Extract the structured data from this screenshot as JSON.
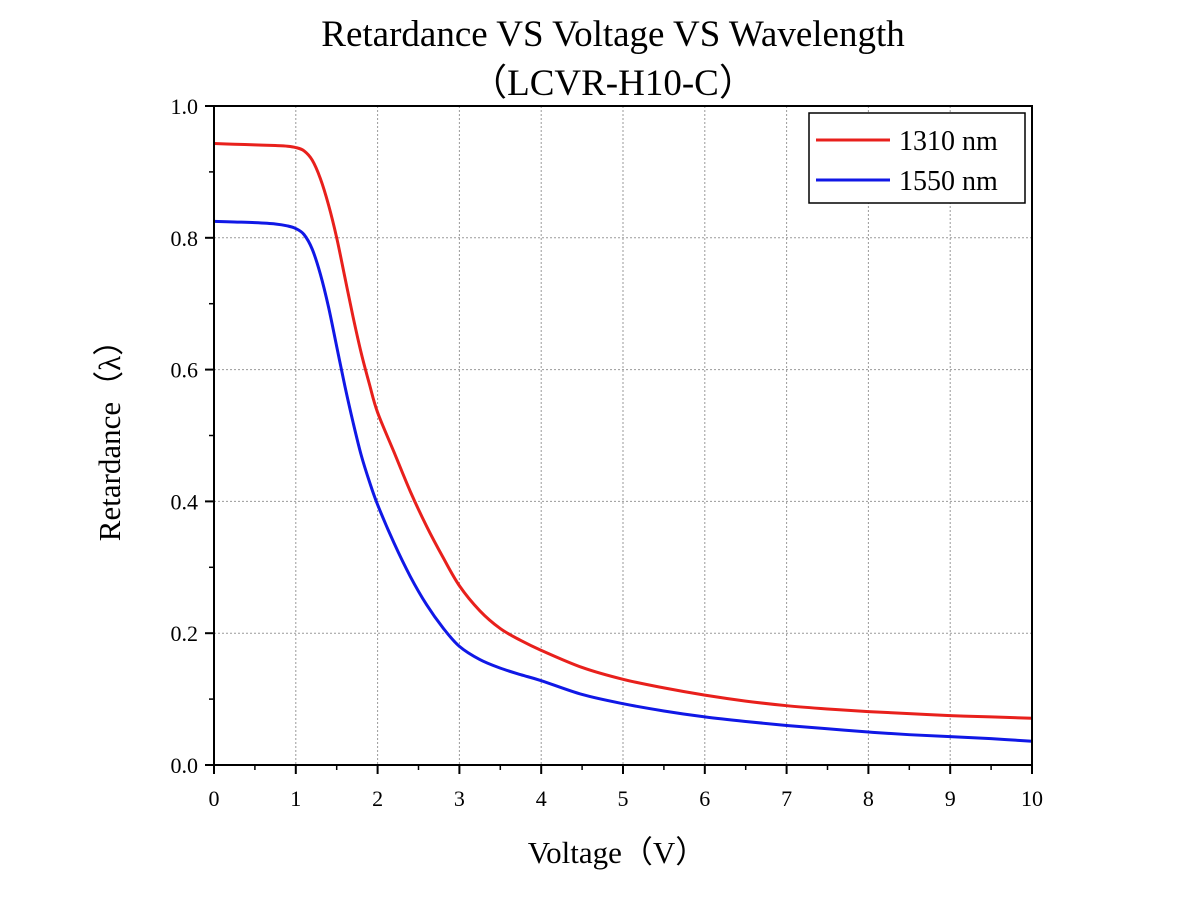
{
  "chart_data": {
    "type": "line",
    "title": "Retardance VS Voltage VS Wavelength",
    "subtitle": "（LCVR-H10-C）",
    "xlabel": "Voltage（V）",
    "ylabel": "Retardance（λ）",
    "xlim": [
      0,
      10
    ],
    "ylim": [
      0,
      1.0
    ],
    "x_ticks": [
      "0",
      "1",
      "2",
      "3",
      "4",
      "5",
      "6",
      "7",
      "8",
      "9",
      "10"
    ],
    "y_ticks": [
      "0.0",
      "0.2",
      "0.4",
      "0.6",
      "0.8",
      "1.0"
    ],
    "grid": true,
    "legend_position": "top-right",
    "series": [
      {
        "name": "1310 nm",
        "color": "#e8201c",
        "x": [
          0,
          0.25,
          0.5,
          0.75,
          0.9,
          1.0,
          1.1,
          1.2,
          1.3,
          1.4,
          1.5,
          1.6,
          1.7,
          1.8,
          1.9,
          2.0,
          2.2,
          2.4,
          2.6,
          2.8,
          3.0,
          3.25,
          3.5,
          3.75,
          4.0,
          4.5,
          5.0,
          5.5,
          6.0,
          6.5,
          7.0,
          7.5,
          8.0,
          8.5,
          9.0,
          9.5,
          10.0
        ],
        "y": [
          0.943,
          0.942,
          0.941,
          0.94,
          0.939,
          0.937,
          0.932,
          0.918,
          0.89,
          0.85,
          0.8,
          0.74,
          0.68,
          0.625,
          0.578,
          0.535,
          0.475,
          0.415,
          0.362,
          0.315,
          0.272,
          0.234,
          0.207,
          0.189,
          0.174,
          0.148,
          0.13,
          0.117,
          0.106,
          0.097,
          0.09,
          0.085,
          0.081,
          0.078,
          0.075,
          0.073,
          0.071
        ]
      },
      {
        "name": "1550 nm",
        "color": "#1018e6",
        "x": [
          0,
          0.25,
          0.5,
          0.75,
          0.9,
          1.0,
          1.1,
          1.2,
          1.3,
          1.4,
          1.5,
          1.6,
          1.7,
          1.8,
          1.9,
          2.0,
          2.2,
          2.4,
          2.6,
          2.8,
          3.0,
          3.25,
          3.5,
          3.75,
          4.0,
          4.5,
          5.0,
          5.5,
          6.0,
          6.5,
          7.0,
          7.5,
          8.0,
          8.5,
          9.0,
          9.5,
          10.0
        ],
        "y": [
          0.825,
          0.824,
          0.823,
          0.821,
          0.818,
          0.814,
          0.805,
          0.783,
          0.745,
          0.695,
          0.635,
          0.575,
          0.52,
          0.47,
          0.43,
          0.395,
          0.337,
          0.286,
          0.243,
          0.208,
          0.18,
          0.16,
          0.147,
          0.137,
          0.128,
          0.107,
          0.093,
          0.082,
          0.073,
          0.066,
          0.06,
          0.055,
          0.05,
          0.046,
          0.043,
          0.04,
          0.036
        ]
      }
    ]
  }
}
